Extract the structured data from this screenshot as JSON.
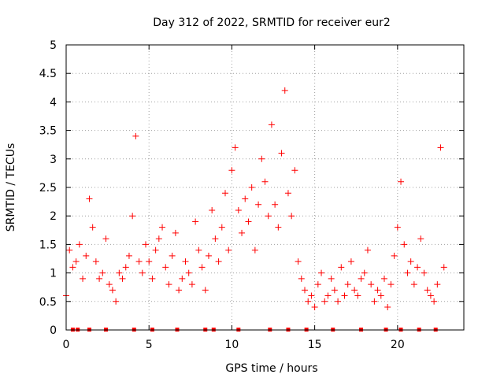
{
  "chart_data": {
    "type": "scatter",
    "title": "Day 312 of 2022, SRMTID for receiver eur2",
    "xlabel": "GPS time / hours",
    "ylabel": "SRMTID / TECUs",
    "xlim": [
      0,
      24
    ],
    "ylim": [
      0,
      5
    ],
    "grid": true,
    "marker": "+",
    "color": "#ff0000",
    "x_ticks": [
      {
        "value": 0,
        "label": "0"
      },
      {
        "value": 5,
        "label": "5"
      },
      {
        "value": 10,
        "label": "10"
      },
      {
        "value": 15,
        "label": "15"
      },
      {
        "value": 20,
        "label": "20"
      }
    ],
    "y_ticks": [
      {
        "value": 0,
        "label": "0"
      },
      {
        "value": 0.5,
        "label": "0.5"
      },
      {
        "value": 1,
        "label": "1"
      },
      {
        "value": 1.5,
        "label": "1.5"
      },
      {
        "value": 2,
        "label": "2"
      },
      {
        "value": 2.5,
        "label": "2.5"
      },
      {
        "value": 3,
        "label": "3"
      },
      {
        "value": 3.5,
        "label": "3.5"
      },
      {
        "value": 4,
        "label": "4"
      },
      {
        "value": 4.5,
        "label": "4.5"
      },
      {
        "value": 5,
        "label": "5"
      }
    ],
    "series": [
      {
        "name": "SRMTID",
        "x": [
          0.0,
          0.2,
          0.4,
          0.6,
          0.8,
          1.0,
          1.2,
          1.4,
          1.6,
          1.8,
          2.0,
          2.2,
          2.4,
          2.6,
          2.8,
          3.0,
          3.2,
          3.4,
          3.6,
          3.8,
          4.0,
          4.2,
          4.4,
          4.6,
          4.8,
          5.0,
          5.2,
          5.4,
          5.6,
          5.8,
          6.0,
          6.2,
          6.4,
          6.6,
          6.8,
          7.0,
          7.2,
          7.4,
          7.6,
          7.8,
          8.0,
          8.2,
          8.4,
          8.6,
          8.8,
          9.0,
          9.2,
          9.4,
          9.6,
          9.8,
          10.0,
          10.2,
          10.4,
          10.6,
          10.8,
          11.0,
          11.2,
          11.4,
          11.6,
          11.8,
          12.0,
          12.2,
          12.4,
          12.6,
          12.8,
          13.0,
          13.2,
          13.4,
          13.6,
          13.8,
          14.0,
          14.2,
          14.4,
          14.6,
          14.8,
          15.0,
          15.2,
          15.4,
          15.6,
          15.8,
          16.0,
          16.2,
          16.4,
          16.6,
          16.8,
          17.0,
          17.2,
          17.4,
          17.6,
          17.8,
          18.0,
          18.2,
          18.4,
          18.6,
          18.8,
          19.0,
          19.2,
          19.4,
          19.6,
          19.8,
          20.0,
          20.2,
          20.4,
          20.6,
          20.8,
          21.0,
          21.2,
          21.4,
          21.6,
          21.8,
          22.0,
          22.2,
          22.4,
          22.6,
          22.8
        ],
        "y": [
          0.6,
          1.4,
          1.1,
          1.2,
          1.5,
          0.9,
          1.3,
          2.3,
          1.8,
          1.2,
          0.9,
          1.0,
          1.6,
          0.8,
          0.7,
          0.5,
          1.0,
          0.9,
          1.1,
          1.3,
          2.0,
          3.4,
          1.2,
          1.0,
          1.5,
          1.2,
          0.9,
          1.4,
          1.6,
          1.8,
          1.1,
          0.8,
          1.3,
          1.7,
          0.7,
          0.9,
          1.2,
          1.0,
          0.8,
          1.9,
          1.4,
          1.1,
          0.7,
          1.3,
          2.1,
          1.6,
          1.2,
          1.8,
          2.4,
          1.4,
          2.8,
          3.2,
          2.1,
          1.7,
          2.3,
          1.9,
          2.5,
          1.4,
          2.2,
          3.0,
          2.6,
          2.0,
          3.6,
          2.2,
          1.8,
          3.1,
          4.2,
          2.4,
          2.0,
          2.8,
          1.2,
          0.9,
          0.7,
          0.5,
          0.6,
          0.4,
          0.8,
          1.0,
          0.5,
          0.6,
          0.9,
          0.7,
          0.5,
          1.1,
          0.6,
          0.8,
          1.2,
          0.7,
          0.6,
          0.9,
          1.0,
          1.4,
          0.8,
          0.5,
          0.7,
          0.6,
          0.9,
          0.4,
          0.8,
          1.3,
          1.8,
          2.6,
          1.5,
          1.0,
          1.2,
          0.8,
          1.1,
          1.6,
          1.0,
          0.7,
          0.6,
          0.5,
          0.8,
          3.2,
          1.1
        ]
      }
    ],
    "baseline_markers_x": [
      0.4,
      0.7,
      1.4,
      2.4,
      4.1,
      5.2,
      6.7,
      8.4,
      8.9,
      10.4,
      12.3,
      13.4,
      14.5,
      16.1,
      17.8,
      19.3,
      20.2,
      21.3,
      22.3
    ]
  }
}
